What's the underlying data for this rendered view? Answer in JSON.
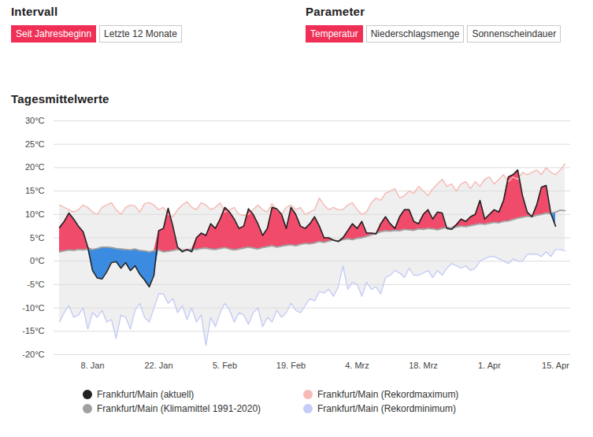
{
  "header": {
    "groups": [
      {
        "title": "Intervall",
        "options": [
          "Seit Jahresbeginn",
          "Letzte 12 Monate"
        ],
        "active": "Seit Jahresbeginn"
      },
      {
        "title": "Parameter",
        "options": [
          "Temperatur",
          "Niederschlagsmenge",
          "Sonnenscheindauer"
        ],
        "active": "Temperatur"
      }
    ]
  },
  "chart_data": {
    "type": "line",
    "title": "Tagesmittelwerte",
    "categories": [
      null,
      null,
      null,
      null,
      null,
      null,
      null,
      "8. Jan",
      null,
      null,
      null,
      null,
      null,
      null,
      null,
      null,
      null,
      null,
      null,
      null,
      null,
      "22. Jan",
      null,
      null,
      null,
      null,
      null,
      null,
      null,
      null,
      null,
      null,
      null,
      null,
      null,
      "5. Feb",
      null,
      null,
      null,
      null,
      null,
      null,
      null,
      null,
      null,
      null,
      null,
      null,
      null,
      "19. Feb",
      null,
      null,
      null,
      null,
      null,
      null,
      null,
      null,
      null,
      null,
      null,
      null,
      null,
      "4. Mrz",
      null,
      null,
      null,
      null,
      null,
      null,
      null,
      null,
      null,
      null,
      null,
      null,
      null,
      "18. Mrz",
      null,
      null,
      null,
      null,
      null,
      null,
      null,
      null,
      null,
      null,
      null,
      null,
      null,
      "1. Apr",
      null,
      null,
      null,
      null,
      null,
      null,
      null,
      null,
      null,
      null,
      null,
      null,
      null,
      "15. Apr",
      null,
      null
    ],
    "series": [
      {
        "name": "Frankfurt/Main (aktuell)",
        "color": "#222222",
        "values": [
          7.2,
          8.5,
          10.3,
          9.0,
          7.5,
          6.3,
          3.0,
          -2.0,
          -3.6,
          -3.8,
          -2.3,
          -0.3,
          -0.1,
          -1.5,
          -0.3,
          -2.0,
          -1.0,
          -2.8,
          -4.0,
          -5.5,
          -3.0,
          6.5,
          7.0,
          11.3,
          7.5,
          3.0,
          2.0,
          2.5,
          2.0,
          5.0,
          6.0,
          5.5,
          8.0,
          7.0,
          9.0,
          11.5,
          10.5,
          9.0,
          7.0,
          7.5,
          11.2,
          10.0,
          8.0,
          5.5,
          7.0,
          11.5,
          11.2,
          10.0,
          7.0,
          11.5,
          10.0,
          7.5,
          7.0,
          8.0,
          9.5,
          7.5,
          5.0,
          5.0,
          4.5,
          4.2,
          5.0,
          6.5,
          8.0,
          7.0,
          8.5,
          6.0,
          6.0,
          5.8,
          8.0,
          9.5,
          8.0,
          7.0,
          9.5,
          11.0,
          11.0,
          8.5,
          8.0,
          10.0,
          11.0,
          9.0,
          10.5,
          10.3,
          7.0,
          6.8,
          7.8,
          9.0,
          8.5,
          9.5,
          10.0,
          13.0,
          9.0,
          10.0,
          11.0,
          10.5,
          13.0,
          18.0,
          18.5,
          19.5,
          14.0,
          10.5,
          9.5,
          12.0,
          15.8,
          16.2,
          10.2,
          7.5,
          null,
          null
        ]
      },
      {
        "name": "Frankfurt/Main (Klimamittel 1991-2020)",
        "color": "#a0a0a0",
        "values": [
          2.0,
          2.2,
          2.4,
          2.3,
          2.5,
          2.4,
          2.6,
          2.5,
          2.7,
          3.0,
          3.0,
          2.9,
          2.7,
          2.6,
          2.5,
          2.4,
          2.6,
          2.3,
          2.2,
          2.0,
          2.2,
          2.4,
          2.0,
          2.1,
          2.3,
          2.5,
          2.4,
          2.3,
          2.6,
          2.5,
          2.7,
          2.8,
          2.6,
          2.5,
          2.7,
          2.9,
          2.6,
          2.4,
          2.6,
          2.8,
          3.0,
          2.8,
          2.6,
          2.9,
          3.1,
          3.3,
          3.0,
          3.2,
          3.4,
          3.5,
          3.3,
          3.6,
          3.8,
          3.7,
          3.9,
          4.2,
          4.0,
          4.3,
          4.5,
          4.3,
          4.6,
          4.8,
          4.6,
          4.9,
          5.0,
          5.3,
          5.6,
          6.0,
          6.3,
          6.5,
          6.4,
          6.6,
          6.5,
          6.8,
          6.7,
          6.6,
          6.9,
          6.8,
          7.0,
          6.9,
          6.7,
          7.0,
          7.2,
          7.1,
          7.3,
          7.5,
          7.4,
          7.6,
          7.8,
          8.0,
          7.9,
          8.1,
          8.3,
          8.2,
          8.5,
          8.6,
          8.9,
          9.2,
          9.4,
          9.6,
          9.5,
          9.8,
          10.0,
          10.3,
          10.2,
          10.5,
          10.9,
          10.8
        ]
      },
      {
        "name": "Frankfurt/Main (Rekordmaximum)",
        "color": "#f7b9b5",
        "values": [
          12.0,
          11.5,
          11.0,
          10.5,
          11.0,
          12.0,
          11.5,
          10.5,
          10.0,
          11.5,
          12.0,
          12.5,
          11.0,
          10.0,
          11.5,
          12.0,
          11.8,
          10.5,
          12.3,
          12.5,
          12.0,
          11.0,
          11.5,
          10.0,
          9.5,
          11.0,
          12.0,
          12.7,
          11.5,
          11.0,
          12.5,
          12.0,
          11.0,
          11.5,
          12.5,
          10.5,
          11.0,
          11.5,
          10.0,
          9.8,
          10.0,
          11.0,
          12.0,
          11.0,
          10.5,
          12.3,
          11.0,
          10.0,
          11.5,
          12.0,
          11.0,
          11.5,
          10.0,
          10.5,
          11.0,
          13.5,
          12.0,
          11.0,
          11.5,
          11.0,
          11.0,
          12.0,
          12.5,
          11.0,
          10.0,
          10.5,
          12.5,
          13.5,
          13.0,
          14.5,
          15.0,
          15.5,
          13.5,
          14.0,
          15.0,
          14.5,
          16.0,
          15.0,
          14.0,
          15.5,
          16.5,
          17.5,
          16.0,
          16.5,
          15.0,
          16.5,
          17.0,
          15.5,
          17.0,
          16.0,
          17.5,
          18.0,
          16.5,
          17.5,
          18.5,
          17.0,
          18.0,
          17.5,
          19.0,
          18.5,
          19.0,
          19.5,
          18.5,
          20.0,
          19.0,
          18.5,
          19.5,
          20.8
        ]
      },
      {
        "name": "Frankfurt/Main (Rekordminimum)",
        "color": "#c5ccf5",
        "values": [
          -13.0,
          -11.0,
          -9.5,
          -12.0,
          -11.5,
          -10.0,
          -14.5,
          -11.0,
          -12.0,
          -10.5,
          -13.0,
          -12.5,
          -16.5,
          -11.5,
          -12.0,
          -14.5,
          -10.5,
          -9.0,
          -12.0,
          -13.0,
          -10.0,
          -7.0,
          -7.0,
          -9.0,
          -8.0,
          -11.0,
          -9.5,
          -12.5,
          -10.0,
          -13.0,
          -11.5,
          -18.0,
          -12.0,
          -14.0,
          -11.0,
          -9.0,
          -10.5,
          -13.0,
          -11.0,
          -11.5,
          -13.5,
          -11.0,
          -10.0,
          -14.0,
          -12.0,
          -13.0,
          -10.5,
          -12.0,
          -11.0,
          -9.0,
          -10.5,
          -11.0,
          -9.5,
          -8.0,
          -8.5,
          -6.5,
          -6.8,
          -6.0,
          -7.5,
          -5.5,
          -1.0,
          -6.0,
          -4.5,
          -5.0,
          -7.5,
          -4.5,
          -6.0,
          -5.5,
          -7.0,
          -3.5,
          -3.0,
          -2.0,
          -2.5,
          -3.5,
          -1.5,
          -3.0,
          -3.0,
          -2.5,
          -2.0,
          -3.5,
          -2.0,
          -3.0,
          -1.5,
          -0.5,
          -1.0,
          -1.5,
          -1.0,
          -2.0,
          -1.5,
          0.0,
          0.5,
          1.0,
          1.0,
          0.5,
          0.0,
          -0.5,
          0.5,
          0.0,
          0.0,
          1.5,
          1.5,
          1.5,
          1.0,
          2.0,
          1.0,
          2.5,
          2.5,
          2.2
        ]
      }
    ],
    "ylim": [
      -20,
      30
    ],
    "yticks": [
      {
        "value": -20,
        "label": "-20°C"
      },
      {
        "value": -15,
        "label": "-15°C"
      },
      {
        "value": -10,
        "label": "-10°C"
      },
      {
        "value": -5,
        "label": "-5°C"
      },
      {
        "value": 0,
        "label": "0°C"
      },
      {
        "value": 5,
        "label": "5°C"
      },
      {
        "value": 10,
        "label": "10°C"
      },
      {
        "value": 15,
        "label": "15°C"
      },
      {
        "value": 20,
        "label": "20°C"
      },
      {
        "value": 25,
        "label": "25°C"
      },
      {
        "value": 30,
        "label": "30°C"
      }
    ],
    "grid": true,
    "legend": "bottom"
  }
}
